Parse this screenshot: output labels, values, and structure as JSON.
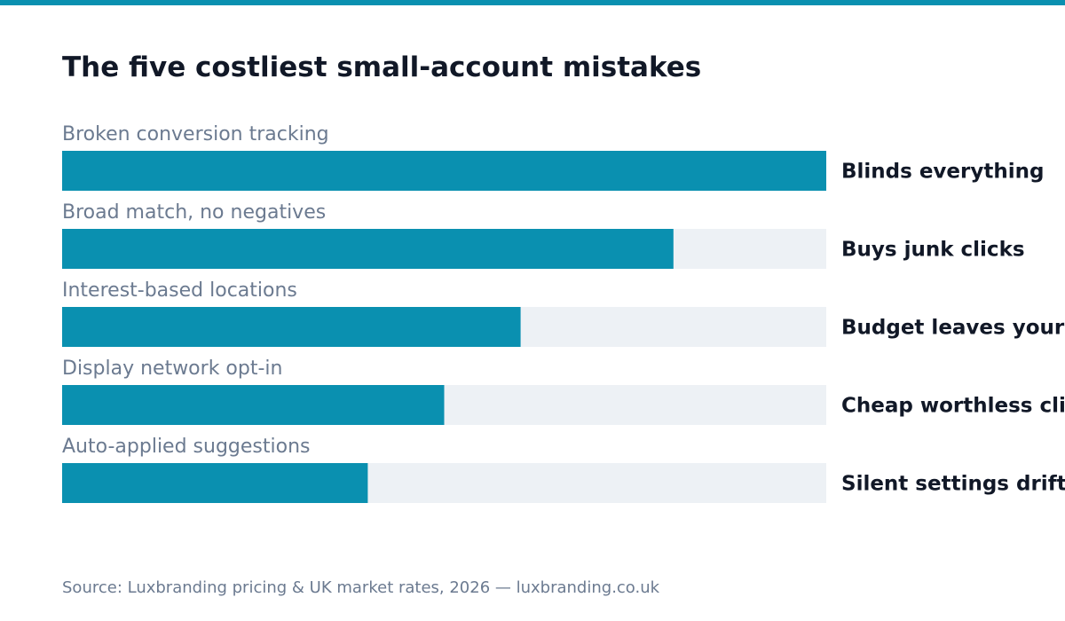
{
  "title": "The five costliest small-account mistakes",
  "source": "Source: Luxbranding pricing & UK market rates, 2026 — luxbranding.co.uk",
  "colors": {
    "accent": "#0a90b0",
    "track": "#edf1f5",
    "title_text": "#111827",
    "muted_text": "#6b7a90"
  },
  "chart_data": {
    "type": "bar",
    "orientation": "horizontal",
    "categories": [
      "Broken conversion tracking",
      "Broad match, no negatives",
      "Interest-based locations",
      "Display network opt-in",
      "Auto-applied suggestions"
    ],
    "values": [
      100,
      80,
      60,
      50,
      40
    ],
    "value_labels": [
      "Blinds everything",
      "Buys junk clicks",
      "Budget leaves your a",
      "Cheap worthless clic",
      "Silent settings drift"
    ],
    "xlim": [
      0,
      100
    ],
    "grid": false,
    "legend": "none"
  }
}
